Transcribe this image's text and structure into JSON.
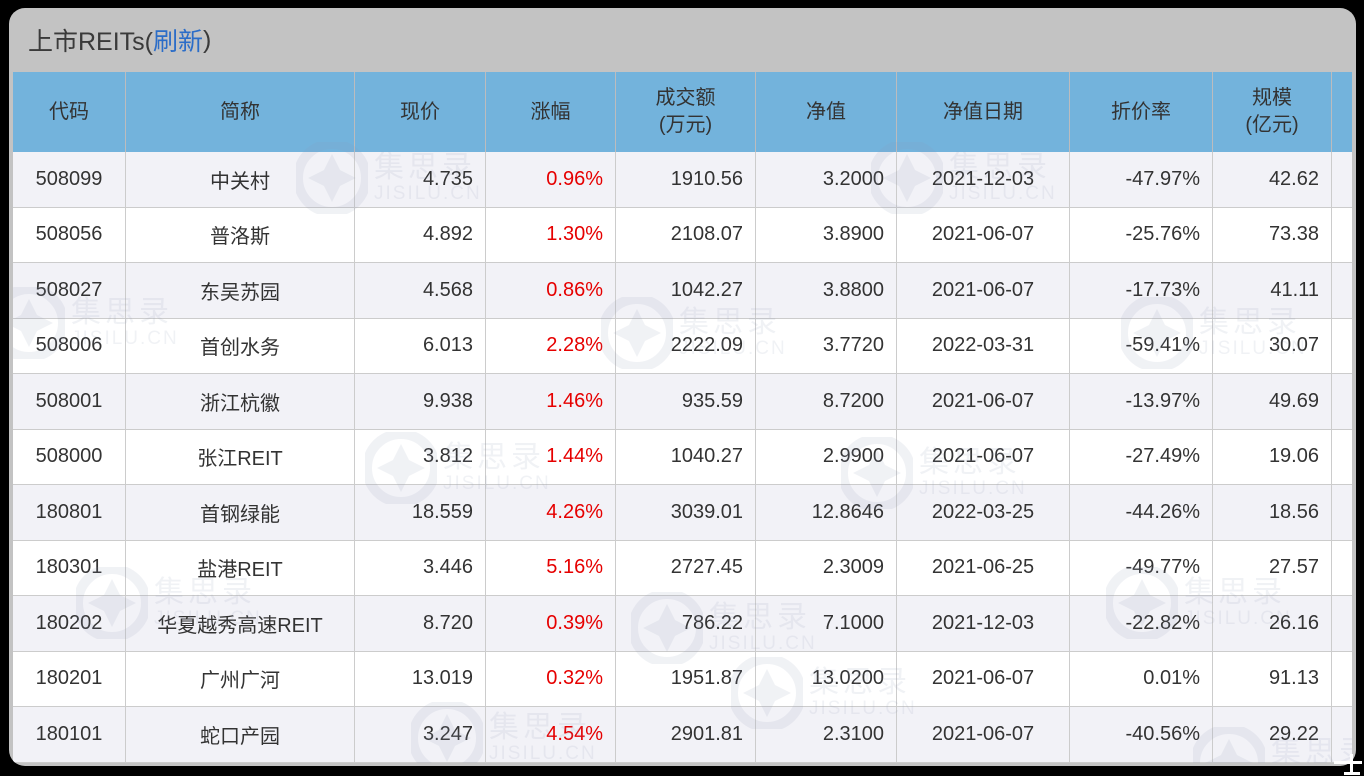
{
  "title": {
    "prefix": "上市REITs(",
    "refresh": "刷新",
    "suffix": ")"
  },
  "watermark": {
    "cn": "集思录",
    "en": "JISILU.CN"
  },
  "colors": {
    "header_bg": "#73b3dc",
    "row_alt": "#f2f2f7",
    "panel_bg": "#c3c3c3",
    "link": "#2b6dc8",
    "change_red": "#e60000"
  },
  "table": {
    "columns": [
      {
        "key": "code",
        "label": "代码",
        "sublabel": "",
        "align": "center"
      },
      {
        "key": "name",
        "label": "简称",
        "sublabel": "",
        "align": "center"
      },
      {
        "key": "price",
        "label": "现价",
        "sublabel": "",
        "align": "right"
      },
      {
        "key": "change",
        "label": "涨幅",
        "sublabel": "",
        "align": "right",
        "red": true
      },
      {
        "key": "turnover",
        "label": "成交额",
        "sublabel": "(万元)",
        "align": "right"
      },
      {
        "key": "nav",
        "label": "净值",
        "sublabel": "",
        "align": "right"
      },
      {
        "key": "nav_date",
        "label": "净值日期",
        "sublabel": "",
        "align": "center"
      },
      {
        "key": "discount",
        "label": "折价率",
        "sublabel": "",
        "align": "right"
      },
      {
        "key": "scale",
        "label": "规模",
        "sublabel": "(亿元)",
        "align": "right"
      }
    ],
    "rows": [
      {
        "code": "508099",
        "name": "中关村",
        "price": "4.735",
        "change": "0.96%",
        "turnover": "1910.56",
        "nav": "3.2000",
        "nav_date": "2021-12-03",
        "discount": "-47.97%",
        "scale": "42.62"
      },
      {
        "code": "508056",
        "name": "普洛斯",
        "price": "4.892",
        "change": "1.30%",
        "turnover": "2108.07",
        "nav": "3.8900",
        "nav_date": "2021-06-07",
        "discount": "-25.76%",
        "scale": "73.38"
      },
      {
        "code": "508027",
        "name": "东吴苏园",
        "price": "4.568",
        "change": "0.86%",
        "turnover": "1042.27",
        "nav": "3.8800",
        "nav_date": "2021-06-07",
        "discount": "-17.73%",
        "scale": "41.11"
      },
      {
        "code": "508006",
        "name": "首创水务",
        "price": "6.013",
        "change": "2.28%",
        "turnover": "2222.09",
        "nav": "3.7720",
        "nav_date": "2022-03-31",
        "discount": "-59.41%",
        "scale": "30.07"
      },
      {
        "code": "508001",
        "name": "浙江杭徽",
        "price": "9.938",
        "change": "1.46%",
        "turnover": "935.59",
        "nav": "8.7200",
        "nav_date": "2021-06-07",
        "discount": "-13.97%",
        "scale": "49.69"
      },
      {
        "code": "508000",
        "name": "张江REIT",
        "price": "3.812",
        "change": "1.44%",
        "turnover": "1040.27",
        "nav": "2.9900",
        "nav_date": "2021-06-07",
        "discount": "-27.49%",
        "scale": "19.06"
      },
      {
        "code": "180801",
        "name": "首钢绿能",
        "price": "18.559",
        "change": "4.26%",
        "turnover": "3039.01",
        "nav": "12.8646",
        "nav_date": "2022-03-25",
        "discount": "-44.26%",
        "scale": "18.56"
      },
      {
        "code": "180301",
        "name": "盐港REIT",
        "price": "3.446",
        "change": "5.16%",
        "turnover": "2727.45",
        "nav": "2.3009",
        "nav_date": "2021-06-25",
        "discount": "-49.77%",
        "scale": "27.57"
      },
      {
        "code": "180202",
        "name": "华夏越秀高速REIT",
        "price": "8.720",
        "change": "0.39%",
        "turnover": "786.22",
        "nav": "7.1000",
        "nav_date": "2021-12-03",
        "discount": "-22.82%",
        "scale": "26.16"
      },
      {
        "code": "180201",
        "name": "广州广河",
        "price": "13.019",
        "change": "0.32%",
        "turnover": "1951.87",
        "nav": "13.0200",
        "nav_date": "2021-06-07",
        "discount": "0.01%",
        "scale": "91.13"
      },
      {
        "code": "180101",
        "name": "蛇口产园",
        "price": "3.247",
        "change": "4.54%",
        "turnover": "2901.81",
        "nav": "2.3100",
        "nav_date": "2021-06-07",
        "discount": "-40.56%",
        "scale": "29.22"
      }
    ]
  }
}
